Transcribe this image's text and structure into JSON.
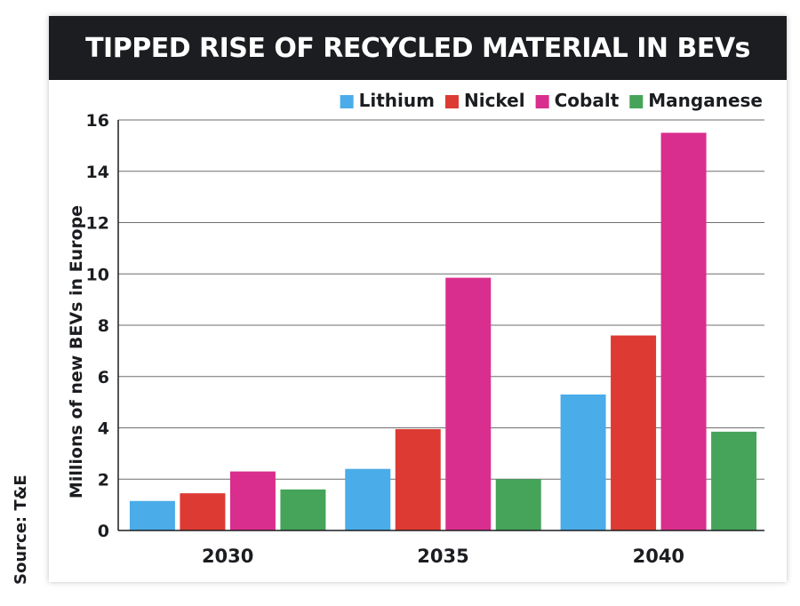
{
  "source": "Source: T&E",
  "chart_data": {
    "type": "bar",
    "title": "TIPPED RISE OF RECYCLED MATERIAL IN BEVs",
    "xlabel": "",
    "ylabel": "Millions of new BEVs in Europe",
    "categories": [
      "2030",
      "2035",
      "2040"
    ],
    "ylim": [
      0,
      16
    ],
    "yticks": [
      "0",
      "2",
      "4",
      "6",
      "8",
      "10",
      "12",
      "14",
      "16"
    ],
    "grid": true,
    "legend_position": "top-right",
    "series": [
      {
        "name": "Lithium",
        "color": "#4aace8",
        "values": [
          1.15,
          2.4,
          5.3
        ]
      },
      {
        "name": "Nickel",
        "color": "#dc3a32",
        "values": [
          1.45,
          3.95,
          7.6
        ]
      },
      {
        "name": "Cobalt",
        "color": "#d92e8d",
        "values": [
          2.3,
          9.85,
          15.5
        ]
      },
      {
        "name": "Manganese",
        "color": "#45a459",
        "values": [
          1.6,
          2.0,
          3.85
        ]
      }
    ]
  }
}
